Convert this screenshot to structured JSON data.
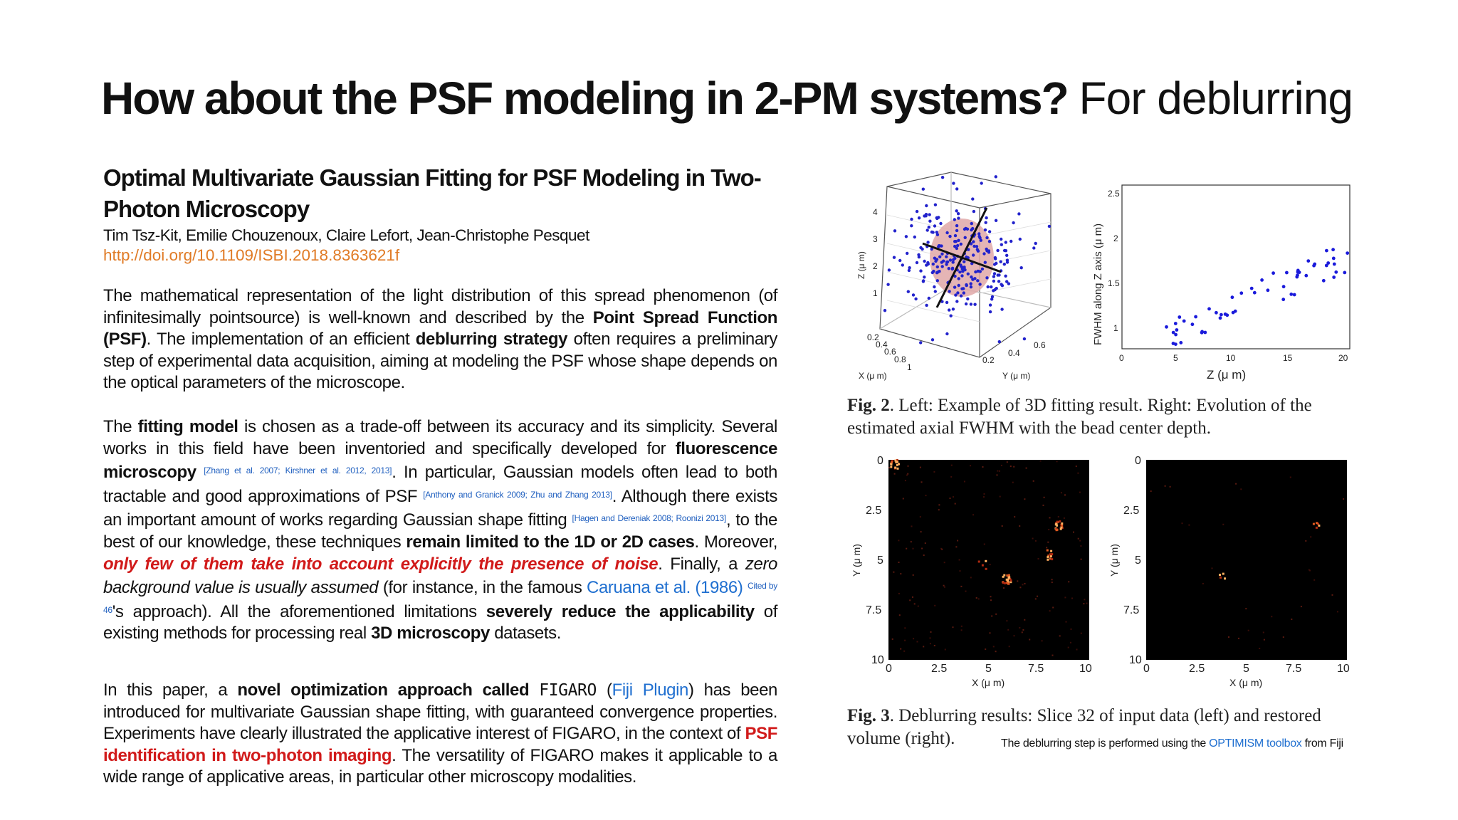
{
  "slide": {
    "title_bold": "How about the PSF modeling in 2-PM systems?",
    "title_regular": "For deblurring"
  },
  "paper": {
    "title": "Optimal Multivariate Gaussian Fitting for PSF Modeling in Two-Photon Microscopy",
    "authors": "Tim Tsz-Kit, Emilie Chouzenoux, Claire Lefort, Jean-Christophe Pesquet",
    "doi": "http://doi.org/10.1109/ISBI.2018.8363621f"
  },
  "para1": {
    "t1": "The mathematical representation of the light distribution of this spread phenomenon (of infinitesimally pointsource) is well-known and described by the ",
    "b1": "Point Spread Function (PSF)",
    "t2": ". The implementation of an efficient ",
    "b2": "deblurring strategy",
    "t3": " often requires a preliminary step of experimental data acquisition, aiming at modeling the PSF whose shape depends on the optical parameters of the microscope."
  },
  "para2": {
    "t1": "The ",
    "b1": "fitting model",
    "t2": " is chosen as a trade-off between its accuracy and its simplicity. Several works in this field have been inventoried and specifically developed for ",
    "b2": "fluorescence microscopy",
    "c1": "[Zhang et al. 2007; Kirshner et al. 2012, 2013]",
    "t3": ". In particular, Gaussian models often lead to both tractable and good approximations of PSF ",
    "c2": "[Anthony and Granick 2009; Zhu and Zhang 2013]",
    "t4": ". Although there exists an important amount of works regarding Gaussian shape fitting ",
    "c3": "[Hagen and Dereniak 2008; Roonizi 2013]",
    "t5": ", to the best of our knowledge, these techniques ",
    "b3": "remain limited to the 1D or 2D cases",
    "t6": ". Moreover, ",
    "r1": "only few of them take into account explicitly the presence of noise",
    "t7": ". Finally, a ",
    "i1": "zero background value is usually assumed",
    "t8": " (for instance, in the famous ",
    "l1": "Caruana et al. (1986)",
    "c4": "Cited by 46",
    "t9": "'s approach). All the aforementioned limitations ",
    "b4": "severely reduce the applicability",
    "t10": " of existing methods for processing real ",
    "b5": "3D microscopy",
    "t11": " datasets."
  },
  "para3": {
    "t1": "In this paper, a ",
    "b1": "novel optimization approach called",
    "m1": "FIGARO",
    "t2": " (",
    "l1": "Fiji Plugin",
    "t3": ") has been introduced for multivariate Gaussian shape fitting, with guaranteed convergence properties. Experiments have clearly illustrated the applicative interest of FIGARO, in the context of ",
    "r1": "PSF identification in two-photon imaging",
    "t4": ". The versatility of FIGARO makes it applicable to a wide range of applicative areas, in particular other microscopy modalities."
  },
  "fig2": {
    "left_axes": {
      "z_label": "Z (μ m)",
      "x_label": "X (μ m)",
      "y_label": "Y (μ m)",
      "z_ticks": [
        "4",
        "3",
        "2",
        "1"
      ],
      "x_ticks": [
        "0.2",
        "0.4",
        "0.6",
        "0.8",
        "1"
      ],
      "y_ticks": [
        "0.2",
        "0.4",
        "0.6"
      ]
    },
    "right_axes": {
      "ylabel": "FWHM along Z axis (μ m)",
      "xlabel": "Z (μ m)",
      "x_ticks": [
        "0",
        "5",
        "10",
        "15",
        "20"
      ],
      "y_ticks": [
        "1",
        "1.5",
        "2",
        "2.5"
      ]
    },
    "caption_label": "Fig. 2",
    "caption_text": ". Left: Example of 3D fitting result. Right: Evolution of the estimated axial FWHM with the bead center depth."
  },
  "fig3": {
    "ylabel": "Y (μ m)",
    "xlabel": "X (μ m)",
    "y_ticks": [
      "0",
      "2.5",
      "5",
      "7.5",
      "10"
    ],
    "x_ticks": [
      "0",
      "2.5",
      "5",
      "7.5",
      "10"
    ],
    "caption_label": "Fig. 3",
    "caption_text": ". Deblurring results: Slice 32 of input data (left) and restored volume (right)."
  },
  "note": {
    "t1": "The deblurring step is performed using the ",
    "l1": "OPTIMISM toolbox",
    "t2": " from Fiji"
  },
  "colors": {
    "link": "#1f6fd0",
    "doi": "#e07b26",
    "emphasis_red": "#d11a1a",
    "scatter_blue": "#1a1adb"
  }
}
